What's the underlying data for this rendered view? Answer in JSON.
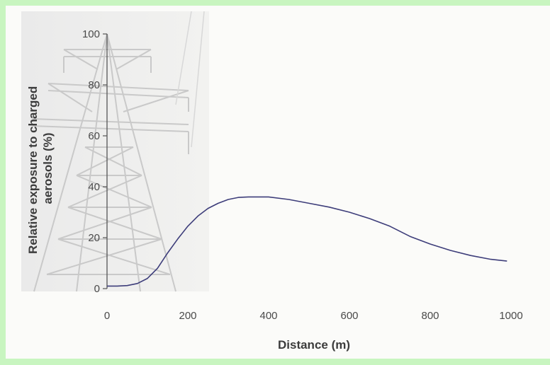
{
  "chart_data": {
    "type": "line",
    "title": "",
    "xlabel": "Distance (m)",
    "ylabel_lines": [
      "Relative exposure to charged",
      "aerosols (%)"
    ],
    "xlim": [
      0,
      1000
    ],
    "ylim": [
      0,
      100
    ],
    "x_ticks": [
      0,
      200,
      400,
      600,
      800,
      1000
    ],
    "y_ticks": [
      0,
      20,
      40,
      60,
      80,
      100
    ],
    "grid": false,
    "legend": "none",
    "line_color": "#3d3d7a",
    "background_image": "electricity-pylon",
    "series": [
      {
        "x": [
          0,
          25,
          50,
          75,
          100,
          125,
          150,
          175,
          200,
          225,
          250,
          275,
          300,
          325,
          350,
          400,
          450,
          500,
          550,
          600,
          650,
          700,
          750,
          800,
          850,
          900,
          950,
          990
        ],
        "y": [
          1,
          1,
          1.2,
          2,
          4,
          8,
          14,
          19.5,
          24.5,
          28.5,
          31.5,
          33.5,
          35,
          35.8,
          36,
          36,
          35,
          33.5,
          32,
          30,
          27.5,
          24.5,
          20.5,
          17.5,
          15,
          13,
          11.5,
          10.8
        ]
      }
    ]
  }
}
